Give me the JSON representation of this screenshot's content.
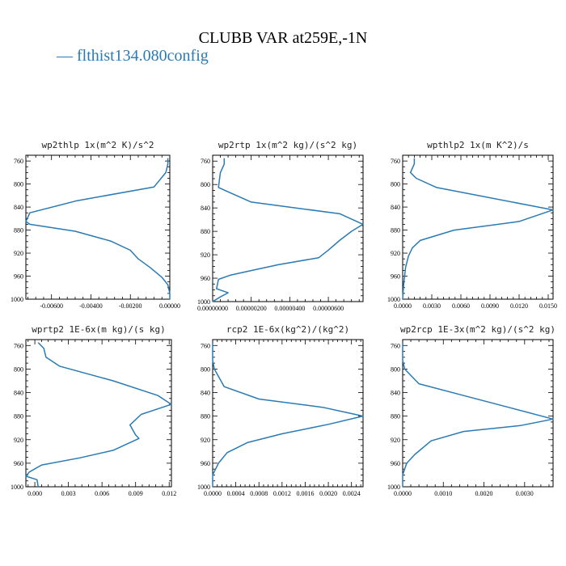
{
  "title": "CLUBB VAR at259E,-1N",
  "legend": {
    "dash": "—",
    "label": "flthist134.080config",
    "color": "#2a7ab3"
  },
  "chart_data": [
    {
      "type": "line",
      "title": "wp2thlp  1x(m^2 K)/s^2",
      "xlim": [
        -0.0073,
        0.0
      ],
      "ylim": [
        1000,
        750
      ],
      "xticks": [
        -0.006,
        -0.004,
        -0.002,
        0.0
      ],
      "xtick_labels": [
        "-0.00600",
        "-0.00400",
        "-0.00200",
        "0.00000"
      ],
      "yticks": [
        760,
        800,
        840,
        880,
        920,
        960,
        1000
      ],
      "ytick_labels": [
        "760",
        "800",
        "840",
        "880",
        "920",
        "960",
        "1000"
      ],
      "series": [
        {
          "x": [
            -0.0001,
            -0.0001,
            -0.0002,
            -0.0008,
            -0.0047,
            -0.0071,
            -0.0073,
            -0.0071,
            -0.0048,
            -0.003,
            -0.002,
            -0.0016,
            -0.001,
            -0.0004,
            -0.0001,
            0.0,
            0.0
          ],
          "y": [
            755,
            765,
            780,
            805,
            829,
            850,
            865,
            870,
            882,
            899,
            915,
            930,
            945,
            962,
            975,
            990,
            1000
          ]
        }
      ]
    },
    {
      "type": "line",
      "title": "wp2rtp  1x(m^2 kg)/(s^2 kg)",
      "xlim": [
        0.0,
        7.8e-06
      ],
      "ylim": [
        1000,
        750
      ],
      "xticks": [
        0.0,
        2e-06,
        4e-06,
        6e-06
      ],
      "xtick_labels": [
        "0.00000000",
        "0.00000200",
        "0.00000400",
        "0.00000600"
      ],
      "yticks": [
        760,
        800,
        840,
        880,
        920,
        960,
        1000
      ],
      "ytick_labels": [
        "760",
        "800",
        "840",
        "880",
        "920",
        "960",
        "1000"
      ],
      "series": [
        {
          "x": [
            6e-07,
            6e-07,
            4e-07,
            3e-07,
            7e-07,
            2e-06,
            6.6e-06,
            7.8e-06,
            7.2e-06,
            6.6e-06,
            6e-06,
            5.5e-06,
            3.4e-06,
            2e-06,
            9e-07,
            3e-07,
            2e-07,
            8e-07,
            4e-07,
            0.0
          ],
          "y": [
            755,
            765,
            780,
            805,
            811,
            830,
            850,
            868,
            880,
            895,
            912,
            925,
            937,
            947,
            955,
            962,
            978,
            985,
            992,
            1000
          ]
        }
      ]
    },
    {
      "type": "line",
      "title": "wpthlp2  1x(m K^2)/s",
      "xlim": [
        0.0,
        0.0155
      ],
      "ylim": [
        1000,
        750
      ],
      "xticks": [
        0.0,
        0.003,
        0.006,
        0.009,
        0.012,
        0.015
      ],
      "xtick_labels": [
        "0.0000",
        "0.0030",
        "0.0060",
        "0.0090",
        "0.0120",
        "0.0150"
      ],
      "yticks": [
        760,
        800,
        840,
        880,
        920,
        960,
        1000
      ],
      "ytick_labels": [
        "760",
        "800",
        "840",
        "880",
        "920",
        "960",
        "1000"
      ],
      "series": [
        {
          "x": [
            0.0012,
            0.0012,
            0.0008,
            0.0014,
            0.0035,
            0.0155,
            0.012,
            0.0053,
            0.0018,
            0.001,
            0.0006,
            0.0003,
            0.0001,
            0.0
          ],
          "y": [
            755,
            765,
            780,
            790,
            806,
            845,
            865,
            880,
            898,
            911,
            925,
            945,
            975,
            1000
          ]
        }
      ]
    },
    {
      "type": "line",
      "title": "wprtp2  1E-6x(m kg)/(s kg)",
      "xlim": [
        -0.0008,
        0.0122
      ],
      "ylim": [
        1000,
        750
      ],
      "xticks": [
        0.0,
        0.003,
        0.006,
        0.009,
        0.012
      ],
      "xtick_labels": [
        "0.000",
        "0.003",
        "0.006",
        "0.009",
        "0.012"
      ],
      "yticks": [
        760,
        800,
        840,
        880,
        920,
        960,
        1000
      ],
      "ytick_labels": [
        "760",
        "800",
        "840",
        "880",
        "920",
        "960",
        "1000"
      ],
      "series": [
        {
          "x": [
            0.0003,
            0.0008,
            0.001,
            0.0022,
            0.007,
            0.011,
            0.0122,
            0.0095,
            0.0085,
            0.009,
            0.0093,
            0.007,
            0.004,
            0.0006,
            -0.0005,
            -0.0008,
            0.0002,
            0.0003
          ],
          "y": [
            755,
            765,
            780,
            795,
            820,
            845,
            860,
            877,
            895,
            912,
            918,
            938,
            951,
            963,
            975,
            982,
            988,
            1000
          ]
        }
      ]
    },
    {
      "type": "line",
      "title": "rcp2  1E-6x(kg^2)/(kg^2)",
      "xlim": [
        0.0,
        0.0026
      ],
      "ylim": [
        1000,
        750
      ],
      "xticks": [
        0.0,
        0.0004,
        0.0008,
        0.0012,
        0.0016,
        0.002,
        0.0024
      ],
      "xtick_labels": [
        "0.0000",
        "0.0004",
        "0.0008",
        "0.0012",
        "0.0016",
        "0.0020",
        "0.0024"
      ],
      "yticks": [
        760,
        800,
        840,
        880,
        920,
        960,
        1000
      ],
      "ytick_labels": [
        "760",
        "800",
        "840",
        "880",
        "920",
        "960",
        "1000"
      ],
      "series": [
        {
          "x": [
            0.0,
            0.0,
            3e-05,
            0.0002,
            0.0008,
            0.0019,
            0.0026,
            0.002,
            0.0012,
            0.0006,
            0.00025,
            0.0001,
            0.0,
            0.0
          ],
          "y": [
            755,
            785,
            800,
            830,
            851,
            865,
            880,
            894,
            910,
            925,
            942,
            960,
            980,
            1000
          ]
        }
      ]
    },
    {
      "type": "line",
      "title": "wp2rcp  1E-3x(m^2 kg)/(s^2 kg)",
      "xlim": [
        0.0,
        0.0037
      ],
      "ylim": [
        1000,
        750
      ],
      "xticks": [
        0.0,
        0.001,
        0.002,
        0.003
      ],
      "xtick_labels": [
        "0.0000",
        "0.0010",
        "0.0020",
        "0.0030"
      ],
      "yticks": [
        760,
        800,
        840,
        880,
        920,
        960,
        1000
      ],
      "ytick_labels": [
        "760",
        "800",
        "840",
        "880",
        "920",
        "960",
        "1000"
      ],
      "series": [
        {
          "x": [
            0.0,
            0.0,
            5e-05,
            0.0004,
            0.0015,
            0.0026,
            0.0037,
            0.0029,
            0.0015,
            0.0007,
            0.0003,
            0.0001,
            0.0,
            0.0
          ],
          "y": [
            755,
            785,
            800,
            825,
            845,
            865,
            885,
            896,
            906,
            922,
            945,
            960,
            980,
            1000
          ]
        }
      ]
    }
  ]
}
